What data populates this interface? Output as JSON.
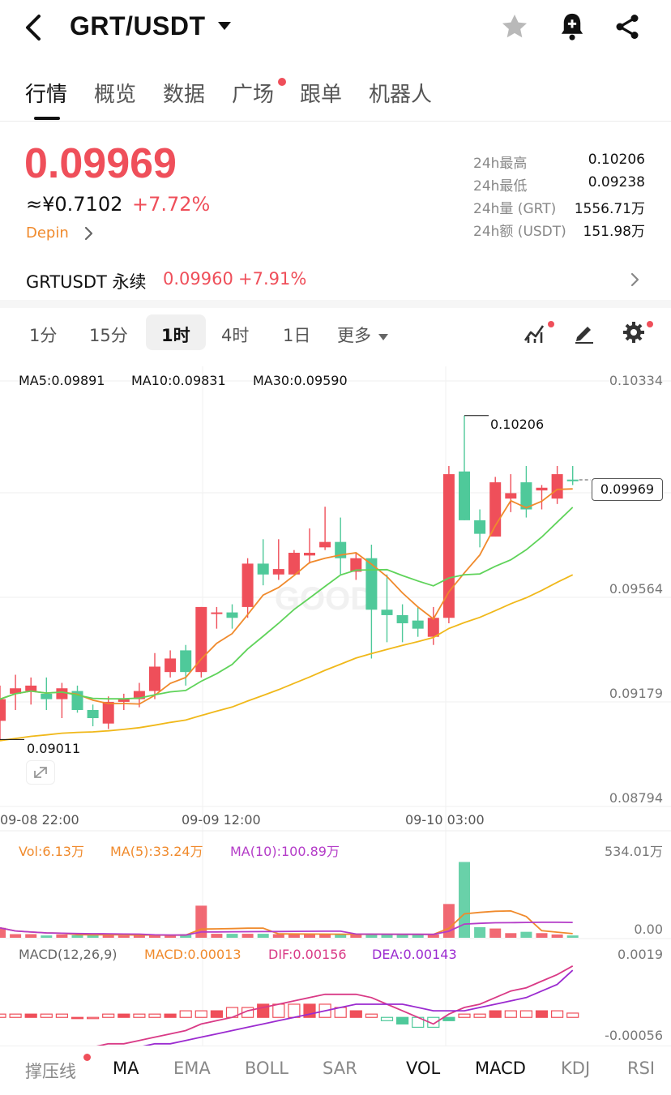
{
  "header": {
    "pair": "GRT/USDT"
  },
  "tabs": [
    {
      "label": "行情",
      "active": true
    },
    {
      "label": "概览",
      "active": false
    },
    {
      "label": "数据",
      "active": false
    },
    {
      "label": "广场",
      "active": false,
      "badge_dot": true
    },
    {
      "label": "跟单",
      "active": false
    },
    {
      "label": "机器人",
      "active": false
    }
  ],
  "ticker": {
    "last_price": "0.09969",
    "cny_price": "≈¥0.7102",
    "change": "+7.72%",
    "tag": "Depin",
    "stats": [
      {
        "label": "24h最高",
        "value": "0.10206"
      },
      {
        "label": "24h最低",
        "value": "0.09238"
      },
      {
        "label": "24h量 (GRT)",
        "value": "1556.71万"
      },
      {
        "label": "24h额 (USDT)",
        "value": "151.98万"
      }
    ]
  },
  "perpetual": {
    "name": "GRTUSDT 永续",
    "price": "0.09960",
    "change": "+7.91%"
  },
  "intervals": [
    "1分",
    "15分",
    "1时",
    "4时",
    "1日",
    "更多"
  ],
  "selected_interval": "1时",
  "chart": {
    "ma_labels": {
      "ma5": "MA5:0.09891",
      "ma10": "MA10:0.09831",
      "ma30": "MA30:0.09590"
    },
    "y_axis": [
      "0.10334",
      "0.09564",
      "0.09179",
      "0.08794"
    ],
    "last_price_tag": "0.09969",
    "high_marker": "0.10206",
    "low_marker": "0.09011",
    "x_axis": [
      "09-08 22:00",
      "09-09 12:00",
      "09-10 03:00"
    ],
    "watermark": "GOOD"
  },
  "volume": {
    "vol": "Vol:6.13万",
    "ma5": "MA(5):33.24万",
    "ma10": "MA(10):100.89万",
    "axis_top": "534.01万",
    "axis_bottom": "0.00"
  },
  "macd": {
    "params": "MACD(12,26,9)",
    "macd": "MACD:0.00013",
    "dif": "DIF:0.00156",
    "dea": "DEA:0.00143",
    "axis_top": "0.0019",
    "axis_bottom": "-0.00056"
  },
  "indicator_bar": [
    {
      "label": "撑压线",
      "active": true,
      "badge_dot": true
    },
    {
      "label": "MA",
      "active": true
    },
    {
      "label": "EMA",
      "active": false
    },
    {
      "label": "BOLL",
      "active": false
    },
    {
      "label": "SAR",
      "active": false
    },
    {
      "label": "VOL",
      "active": true
    },
    {
      "label": "MACD",
      "active": true
    },
    {
      "label": "KDJ",
      "active": false
    },
    {
      "label": "RSI",
      "active": false
    }
  ],
  "colors": {
    "up": "#ef4f5a",
    "down": "#4fc99a",
    "ma5": "#f08a2c",
    "ma10": "#5fd35a",
    "ma30": "#f0b81a",
    "dif": "#d93a86",
    "dea": "#9b2bd0"
  },
  "chart_data": {
    "type": "candlestick",
    "interval": "1h",
    "price_axis": [
      0.08794,
      0.09179,
      0.09564,
      0.10334
    ],
    "candles": [
      {
        "o": 0.0908,
        "h": 0.0921,
        "l": 0.0901,
        "c": 0.0916
      },
      {
        "o": 0.0918,
        "h": 0.0925,
        "l": 0.0912,
        "c": 0.092
      },
      {
        "o": 0.0919,
        "h": 0.0924,
        "l": 0.0914,
        "c": 0.0921
      },
      {
        "o": 0.0918,
        "h": 0.0924,
        "l": 0.0912,
        "c": 0.0916
      },
      {
        "o": 0.0916,
        "h": 0.0922,
        "l": 0.0909,
        "c": 0.092
      },
      {
        "o": 0.0919,
        "h": 0.0921,
        "l": 0.0911,
        "c": 0.0912
      },
      {
        "o": 0.0912,
        "h": 0.0914,
        "l": 0.0906,
        "c": 0.0909
      },
      {
        "o": 0.0907,
        "h": 0.0917,
        "l": 0.0905,
        "c": 0.0915
      },
      {
        "o": 0.0915,
        "h": 0.0918,
        "l": 0.0912,
        "c": 0.0916
      },
      {
        "o": 0.0916,
        "h": 0.0922,
        "l": 0.0913,
        "c": 0.0919
      },
      {
        "o": 0.0919,
        "h": 0.0933,
        "l": 0.0916,
        "c": 0.0928
      },
      {
        "o": 0.0926,
        "h": 0.0934,
        "l": 0.0924,
        "c": 0.0931
      },
      {
        "o": 0.0934,
        "h": 0.0936,
        "l": 0.0921,
        "c": 0.0926
      },
      {
        "o": 0.0926,
        "h": 0.095,
        "l": 0.0924,
        "c": 0.095
      },
      {
        "o": 0.0948,
        "h": 0.095,
        "l": 0.0942,
        "c": 0.0948
      },
      {
        "o": 0.0948,
        "h": 0.0951,
        "l": 0.0942,
        "c": 0.0946
      },
      {
        "o": 0.095,
        "h": 0.0968,
        "l": 0.0946,
        "c": 0.0966
      },
      {
        "o": 0.0966,
        "h": 0.0975,
        "l": 0.0958,
        "c": 0.0962
      },
      {
        "o": 0.0962,
        "h": 0.0975,
        "l": 0.096,
        "c": 0.0964
      },
      {
        "o": 0.0962,
        "h": 0.0971,
        "l": 0.0962,
        "c": 0.097
      },
      {
        "o": 0.0969,
        "h": 0.0979,
        "l": 0.0966,
        "c": 0.097
      },
      {
        "o": 0.0972,
        "h": 0.0987,
        "l": 0.0971,
        "c": 0.0974
      },
      {
        "o": 0.0974,
        "h": 0.0983,
        "l": 0.0962,
        "c": 0.0968
      },
      {
        "o": 0.0963,
        "h": 0.097,
        "l": 0.096,
        "c": 0.0968
      },
      {
        "o": 0.0968,
        "h": 0.0973,
        "l": 0.0931,
        "c": 0.0949
      },
      {
        "o": 0.0949,
        "h": 0.0962,
        "l": 0.0937,
        "c": 0.0947
      },
      {
        "o": 0.0947,
        "h": 0.0951,
        "l": 0.0937,
        "c": 0.0944
      },
      {
        "o": 0.0945,
        "h": 0.095,
        "l": 0.0939,
        "c": 0.0942
      },
      {
        "o": 0.0939,
        "h": 0.095,
        "l": 0.0936,
        "c": 0.0946
      },
      {
        "o": 0.0946,
        "h": 0.1002,
        "l": 0.0944,
        "c": 0.0999
      },
      {
        "o": 0.1,
        "h": 0.10206,
        "l": 0.0982,
        "c": 0.0982
      },
      {
        "o": 0.0982,
        "h": 0.0986,
        "l": 0.0972,
        "c": 0.0977
      },
      {
        "o": 0.0976,
        "h": 0.0998,
        "l": 0.0976,
        "c": 0.0996
      },
      {
        "o": 0.099,
        "h": 0.0999,
        "l": 0.0985,
        "c": 0.0992
      },
      {
        "o": 0.0996,
        "h": 0.1002,
        "l": 0.0983,
        "c": 0.0986
      },
      {
        "o": 0.0993,
        "h": 0.0995,
        "l": 0.0986,
        "c": 0.0994
      },
      {
        "o": 0.099,
        "h": 0.1002,
        "l": 0.0988,
        "c": 0.0999
      },
      {
        "o": 0.0997,
        "h": 0.1002,
        "l": 0.0995,
        "c": 0.09969
      }
    ],
    "volume": [
      60,
      22,
      22,
      14,
      20,
      15,
      18,
      20,
      14,
      15,
      16,
      14,
      22,
      194,
      24,
      24,
      24,
      24,
      22,
      22,
      20,
      22,
      22,
      20,
      22,
      20,
      20,
      20,
      20,
      204,
      458,
      64,
      56,
      28,
      36,
      28,
      20,
      14
    ],
    "macd_dif": [
      -0.0011,
      -0.001,
      -0.0009,
      -0.0009,
      -0.0009,
      -0.0009,
      -0.0009,
      -0.0008,
      -0.0008,
      -0.0007,
      -0.0006,
      -0.0005,
      -0.0004,
      -0.0002,
      -0.0001,
      0.0,
      0.0002,
      0.0003,
      0.0004,
      0.0005,
      0.0006,
      0.0007,
      0.0007,
      0.0007,
      0.0006,
      0.0004,
      0.0002,
      0.0,
      -0.0002,
      0.0001,
      0.0003,
      0.0004,
      0.0006,
      0.0008,
      0.0009,
      0.0011,
      0.0013,
      0.00156
    ],
    "macd_dea": [
      -0.0012,
      -0.0012,
      -0.0011,
      -0.0011,
      -0.0011,
      -0.001,
      -0.001,
      -0.001,
      -0.0009,
      -0.0009,
      -0.0008,
      -0.0008,
      -0.0007,
      -0.0006,
      -0.0005,
      -0.0004,
      -0.0003,
      -0.0002,
      -0.0001,
      0.0,
      0.0001,
      0.0002,
      0.0003,
      0.0004,
      0.0004,
      0.0004,
      0.0004,
      0.0003,
      0.0002,
      0.0002,
      0.0002,
      0.0003,
      0.0004,
      0.0005,
      0.0006,
      0.0008,
      0.001,
      0.00143
    ],
    "macd_hist": [
      0.0001,
      0.0001,
      0.0001,
      0.0001,
      0.0001,
      0.0,
      0.0,
      0.0001,
      0.0001,
      0.0001,
      0.0001,
      0.0001,
      0.0002,
      0.0002,
      0.0002,
      0.0003,
      0.0003,
      0.0004,
      0.0004,
      0.0004,
      0.0004,
      0.0004,
      0.0003,
      0.0002,
      0.0001,
      -0.0001,
      -0.0002,
      -0.0003,
      -0.0003,
      -0.0001,
      0.0001,
      0.0001,
      0.0002,
      0.0002,
      0.0002,
      0.0002,
      0.0002,
      0.00013
    ]
  }
}
